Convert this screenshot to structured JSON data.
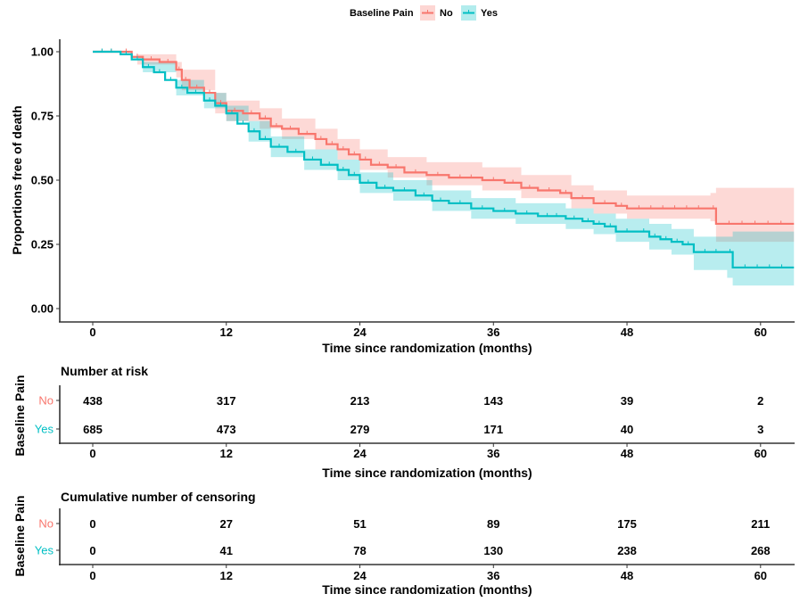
{
  "chart_data": {
    "type": "line",
    "subtype": "kaplan-meier",
    "title": "",
    "legend": {
      "title": "Baseline Pain",
      "placement": "top",
      "entries": [
        {
          "name": "No",
          "color": "#F8766D"
        },
        {
          "name": "Yes",
          "color": "#00BFC4"
        }
      ]
    },
    "xlabel": "Time since randomization (months)",
    "ylabel": "Proportions free of death",
    "xlim": [
      -3,
      63
    ],
    "ylim": [
      -0.03,
      1.05
    ],
    "x_ticks": [
      0,
      12,
      24,
      36,
      48,
      60
    ],
    "y_ticks": [
      0.0,
      0.25,
      0.5,
      0.75,
      1.0
    ],
    "y_tick_labels": [
      "0.00",
      "0.25",
      "0.50",
      "0.75",
      "1.00"
    ],
    "x_tick_labels": [
      "0",
      "12",
      "24",
      "36",
      "48",
      "60"
    ],
    "grid": false,
    "series": [
      {
        "name": "No",
        "color": "#F8766D",
        "ci_color": "#F8766D",
        "steps": [
          [
            0,
            1.0
          ],
          [
            2.5,
            1.0
          ],
          [
            3.5,
            0.98
          ],
          [
            4.5,
            0.97
          ],
          [
            6,
            0.96
          ],
          [
            7.5,
            0.93
          ],
          [
            8,
            0.89
          ],
          [
            8.7,
            0.86
          ],
          [
            10,
            0.84
          ],
          [
            11,
            0.8
          ],
          [
            12,
            0.77
          ],
          [
            13.5,
            0.76
          ],
          [
            15,
            0.74
          ],
          [
            16,
            0.71
          ],
          [
            17,
            0.7
          ],
          [
            18.5,
            0.68
          ],
          [
            20,
            0.66
          ],
          [
            21,
            0.64
          ],
          [
            22,
            0.62
          ],
          [
            23,
            0.6
          ],
          [
            24,
            0.58
          ],
          [
            25,
            0.56
          ],
          [
            26.5,
            0.55
          ],
          [
            28,
            0.53
          ],
          [
            30,
            0.52
          ],
          [
            32,
            0.51
          ],
          [
            35,
            0.5
          ],
          [
            37,
            0.49
          ],
          [
            38.5,
            0.47
          ],
          [
            40,
            0.46
          ],
          [
            42,
            0.45
          ],
          [
            43,
            0.43
          ],
          [
            45,
            0.41
          ],
          [
            47,
            0.4
          ],
          [
            48,
            0.39
          ],
          [
            55.5,
            0.39
          ],
          [
            56,
            0.33
          ],
          [
            63,
            0.33
          ]
        ],
        "ci_upper": [
          [
            0,
            1.0
          ],
          [
            4,
            0.99
          ],
          [
            7.5,
            0.96
          ],
          [
            8,
            0.93
          ],
          [
            11,
            0.84
          ],
          [
            12,
            0.81
          ],
          [
            15,
            0.78
          ],
          [
            17,
            0.74
          ],
          [
            20,
            0.7
          ],
          [
            22,
            0.66
          ],
          [
            24,
            0.62
          ],
          [
            26.5,
            0.59
          ],
          [
            30,
            0.57
          ],
          [
            35,
            0.55
          ],
          [
            38.5,
            0.52
          ],
          [
            43,
            0.48
          ],
          [
            45,
            0.46
          ],
          [
            48,
            0.44
          ],
          [
            55.5,
            0.45
          ],
          [
            56,
            0.47
          ],
          [
            63,
            0.47
          ]
        ],
        "ci_lower": [
          [
            0,
            1.0
          ],
          [
            4,
            0.95
          ],
          [
            7.5,
            0.9
          ],
          [
            8,
            0.85
          ],
          [
            11,
            0.76
          ],
          [
            12,
            0.73
          ],
          [
            15,
            0.7
          ],
          [
            17,
            0.66
          ],
          [
            20,
            0.62
          ],
          [
            22,
            0.58
          ],
          [
            24,
            0.54
          ],
          [
            26.5,
            0.51
          ],
          [
            30,
            0.48
          ],
          [
            35,
            0.46
          ],
          [
            38.5,
            0.43
          ],
          [
            43,
            0.39
          ],
          [
            45,
            0.37
          ],
          [
            48,
            0.35
          ],
          [
            55.5,
            0.34
          ],
          [
            56,
            0.26
          ],
          [
            63,
            0.26
          ]
        ]
      },
      {
        "name": "Yes",
        "color": "#00BFC4",
        "ci_color": "#00BFC4",
        "steps": [
          [
            0,
            1.0
          ],
          [
            2.5,
            0.99
          ],
          [
            3.5,
            0.97
          ],
          [
            4.5,
            0.94
          ],
          [
            5.5,
            0.92
          ],
          [
            6.5,
            0.89
          ],
          [
            7.5,
            0.86
          ],
          [
            8.5,
            0.84
          ],
          [
            10,
            0.81
          ],
          [
            11,
            0.79
          ],
          [
            12,
            0.76
          ],
          [
            13,
            0.72
          ],
          [
            14,
            0.69
          ],
          [
            15,
            0.66
          ],
          [
            16,
            0.63
          ],
          [
            17.5,
            0.61
          ],
          [
            19,
            0.58
          ],
          [
            20.5,
            0.56
          ],
          [
            22,
            0.54
          ],
          [
            23,
            0.52
          ],
          [
            24,
            0.49
          ],
          [
            25.5,
            0.47
          ],
          [
            27,
            0.46
          ],
          [
            29,
            0.44
          ],
          [
            30.5,
            0.42
          ],
          [
            32,
            0.41
          ],
          [
            34,
            0.39
          ],
          [
            36,
            0.38
          ],
          [
            38,
            0.37
          ],
          [
            40,
            0.36
          ],
          [
            42.5,
            0.35
          ],
          [
            44,
            0.34
          ],
          [
            45,
            0.33
          ],
          [
            46,
            0.32
          ],
          [
            47,
            0.3
          ],
          [
            49,
            0.3
          ],
          [
            50,
            0.28
          ],
          [
            51,
            0.27
          ],
          [
            52,
            0.26
          ],
          [
            53,
            0.25
          ],
          [
            54,
            0.22
          ],
          [
            57,
            0.22
          ],
          [
            57.5,
            0.16
          ],
          [
            63,
            0.16
          ]
        ],
        "ci_upper": [
          [
            0,
            1.0
          ],
          [
            4.5,
            0.96
          ],
          [
            7.5,
            0.89
          ],
          [
            10,
            0.84
          ],
          [
            12,
            0.79
          ],
          [
            14,
            0.73
          ],
          [
            16,
            0.67
          ],
          [
            19,
            0.62
          ],
          [
            22,
            0.58
          ],
          [
            24,
            0.53
          ],
          [
            27,
            0.5
          ],
          [
            30.5,
            0.46
          ],
          [
            34,
            0.43
          ],
          [
            38,
            0.41
          ],
          [
            42.5,
            0.39
          ],
          [
            45,
            0.37
          ],
          [
            47,
            0.35
          ],
          [
            50,
            0.33
          ],
          [
            52,
            0.31
          ],
          [
            54,
            0.28
          ],
          [
            56,
            0.28
          ],
          [
            57.5,
            0.3
          ],
          [
            63,
            0.3
          ]
        ],
        "ci_lower": [
          [
            0,
            1.0
          ],
          [
            4.5,
            0.92
          ],
          [
            7.5,
            0.83
          ],
          [
            10,
            0.78
          ],
          [
            12,
            0.73
          ],
          [
            14,
            0.65
          ],
          [
            16,
            0.59
          ],
          [
            19,
            0.54
          ],
          [
            22,
            0.5
          ],
          [
            24,
            0.45
          ],
          [
            27,
            0.42
          ],
          [
            30.5,
            0.38
          ],
          [
            34,
            0.35
          ],
          [
            38,
            0.33
          ],
          [
            42.5,
            0.31
          ],
          [
            45,
            0.29
          ],
          [
            47,
            0.26
          ],
          [
            50,
            0.23
          ],
          [
            52,
            0.21
          ],
          [
            54,
            0.15
          ],
          [
            57,
            0.12
          ],
          [
            57.5,
            0.09
          ],
          [
            63,
            0.09
          ]
        ]
      }
    ],
    "risk_table": {
      "title": "Number at risk",
      "ylabel": "Baseline Pain",
      "xlabel": "Time since randomization (months)",
      "times": [
        0,
        12,
        24,
        36,
        48,
        60
      ],
      "rows": [
        {
          "group": "No",
          "color": "#F8766D",
          "values": [
            438,
            317,
            213,
            143,
            39,
            2
          ]
        },
        {
          "group": "Yes",
          "color": "#00BFC4",
          "values": [
            685,
            473,
            279,
            171,
            40,
            3
          ]
        }
      ]
    },
    "censor_table": {
      "title": "Cumulative number of censoring",
      "ylabel": "Baseline Pain",
      "xlabel": "Time since randomization (months)",
      "times": [
        0,
        12,
        24,
        36,
        48,
        60
      ],
      "rows": [
        {
          "group": "No",
          "color": "#F8766D",
          "values": [
            0,
            27,
            51,
            89,
            175,
            211
          ]
        },
        {
          "group": "Yes",
          "color": "#00BFC4",
          "values": [
            0,
            41,
            78,
            130,
            238,
            268
          ]
        }
      ]
    }
  }
}
